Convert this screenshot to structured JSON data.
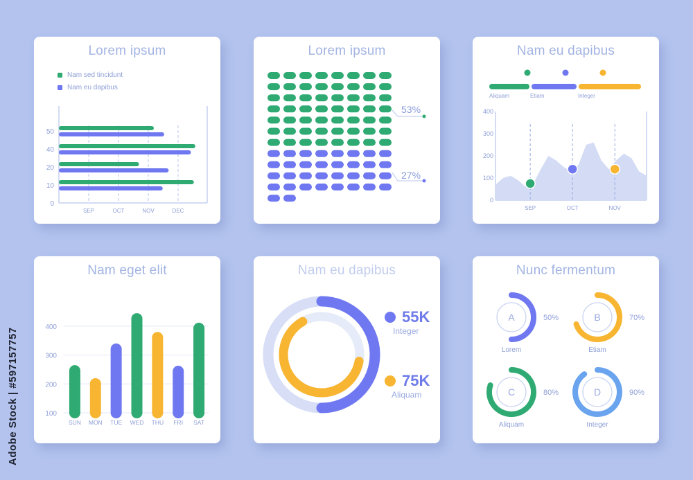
{
  "watermark": "Adobe Stock | #597157757",
  "colors": {
    "green": "#2eaa72",
    "blue": "#6f78f0",
    "yellow": "#f7b531",
    "light_blue": "#d7def6",
    "sky": "#6aa4ee"
  },
  "chart_data": [
    {
      "id": "hbar",
      "type": "bar",
      "orientation": "horizontal",
      "title": "Lorem ipsum",
      "legend": [
        "Nam sed tincidunt",
        "Nam eu dapibus"
      ],
      "y_ticks": [
        "50",
        "40",
        "20",
        "10",
        "0"
      ],
      "x_ticks": [
        "SEP",
        "OCT",
        "NOV",
        "DEC"
      ],
      "series": [
        {
          "name": "Nam sed tincidunt",
          "values": [
            64,
            92,
            54,
            91
          ]
        },
        {
          "name": "Nam eu dapibus",
          "values": [
            71,
            89,
            74,
            70
          ]
        }
      ],
      "xlim": [
        0,
        100
      ]
    },
    {
      "id": "dots",
      "type": "table",
      "title": "Lorem ipsum",
      "grid": {
        "cols": 8,
        "rows": 12
      },
      "green_count": 56,
      "blue_count": 34,
      "labels": [
        "53%",
        "27%"
      ]
    },
    {
      "id": "area",
      "type": "area",
      "title": "Nam eu dapibus",
      "legend": [
        "Aliquam",
        "Etiam",
        "Integer"
      ],
      "y_ticks": [
        "400",
        "300",
        "200",
        "100",
        "0"
      ],
      "x_ticks": [
        "SEP",
        "OCT",
        "NOV"
      ],
      "ylim": [
        0,
        400
      ],
      "x": [
        0,
        0.5,
        1,
        1.5,
        2,
        2.5,
        3,
        3.5,
        4,
        4.5,
        5,
        5.5,
        6,
        6.5,
        7,
        7.5,
        8,
        8.5,
        9,
        9.5,
        10
      ],
      "values": [
        70,
        100,
        110,
        90,
        60,
        75,
        140,
        200,
        180,
        150,
        130,
        160,
        250,
        260,
        180,
        140,
        180,
        210,
        190,
        130,
        110
      ],
      "markers": [
        {
          "name": "Aliquam",
          "x": 2.3,
          "value": 75
        },
        {
          "name": "Etiam",
          "x": 5.1,
          "value": 140
        },
        {
          "name": "Integer",
          "x": 7.9,
          "value": 140
        }
      ]
    },
    {
      "id": "vbar",
      "type": "bar",
      "title": "Nam eget elit",
      "categories": [
        "SUN",
        "MON",
        "TUE",
        "WED",
        "THU",
        "FRI",
        "SAT"
      ],
      "values": [
        265,
        220,
        340,
        445,
        380,
        263,
        412
      ],
      "bar_colors": [
        "green",
        "yellow",
        "blue",
        "green",
        "yellow",
        "blue",
        "green"
      ],
      "y_ticks": [
        "400",
        "300",
        "200",
        "100"
      ],
      "ylim": [
        100,
        450
      ]
    },
    {
      "id": "donut",
      "type": "pie",
      "title": "Nam eu dapibus",
      "rings": [
        {
          "name": "Integer",
          "label": "55K",
          "fraction": 0.5,
          "color": "blue"
        },
        {
          "name": "Aliquam",
          "label": "75K",
          "fraction": 0.64,
          "color": "yellow"
        }
      ]
    },
    {
      "id": "gauges",
      "type": "pie",
      "title": "Nunc fermentum",
      "items": [
        {
          "letter": "A",
          "name": "Lorem",
          "percent": "50%",
          "fraction": 0.5,
          "color": "blue"
        },
        {
          "letter": "B",
          "name": "Etiam",
          "percent": "70%",
          "fraction": 0.7,
          "color": "yellow"
        },
        {
          "letter": "C",
          "name": "Aliquam",
          "percent": "80%",
          "fraction": 0.8,
          "color": "green"
        },
        {
          "letter": "D",
          "name": "Integer",
          "percent": "90%",
          "fraction": 0.9,
          "color": "sky"
        }
      ]
    }
  ]
}
